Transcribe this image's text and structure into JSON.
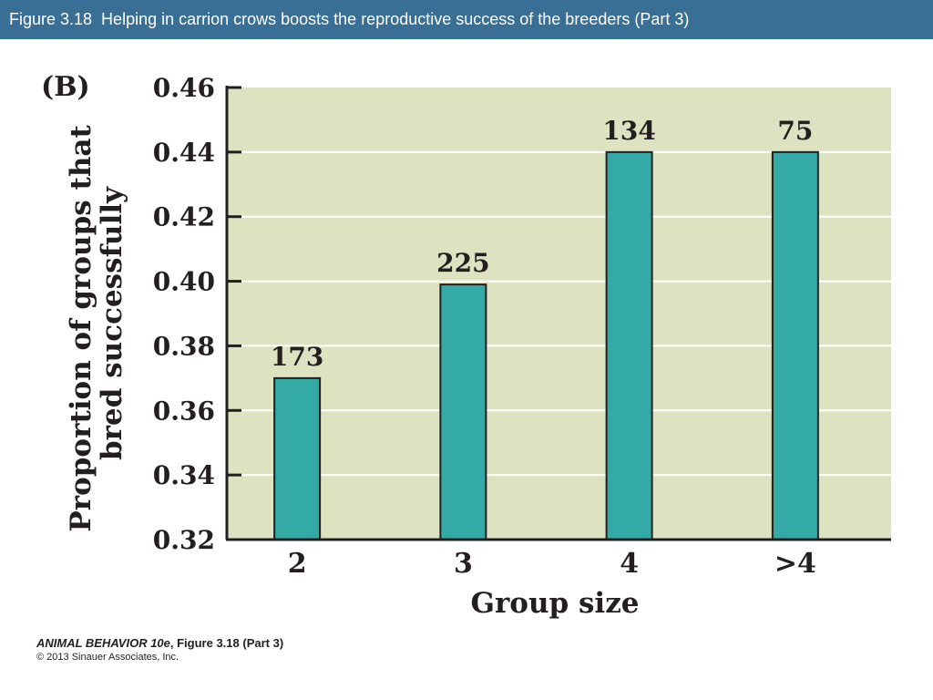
{
  "header": {
    "title": "Figure 3.18  Helping in carrion crows boosts the reproductive success of the breeders (Part 3)"
  },
  "panel_label": "(B)",
  "chart_data": {
    "type": "bar",
    "categories": [
      "2",
      "3",
      "4",
      ">4"
    ],
    "values": [
      0.37,
      0.399,
      0.44,
      0.44
    ],
    "data_labels": [
      "173",
      "225",
      "134",
      "75"
    ],
    "xlabel": "Group size",
    "ylabel_lines": [
      "Proportion of groups that",
      "bred successfully"
    ],
    "ylim": [
      0.32,
      0.46
    ],
    "yticks": [
      "0.32",
      "0.34",
      "0.36",
      "0.38",
      "0.40",
      "0.42",
      "0.44",
      "0.46"
    ],
    "grid": true,
    "colors": {
      "bar": "#33aaa5",
      "plot_background": "#dde3c1",
      "gridline": "#ffffff",
      "axis": "#231f20"
    }
  },
  "footer": {
    "book_title": "ANIMAL BEHAVIOR 10e",
    "figure_ref": ", Figure 3.18 (Part 3)",
    "copyright": "© 2013 Sinauer Associates, Inc."
  }
}
